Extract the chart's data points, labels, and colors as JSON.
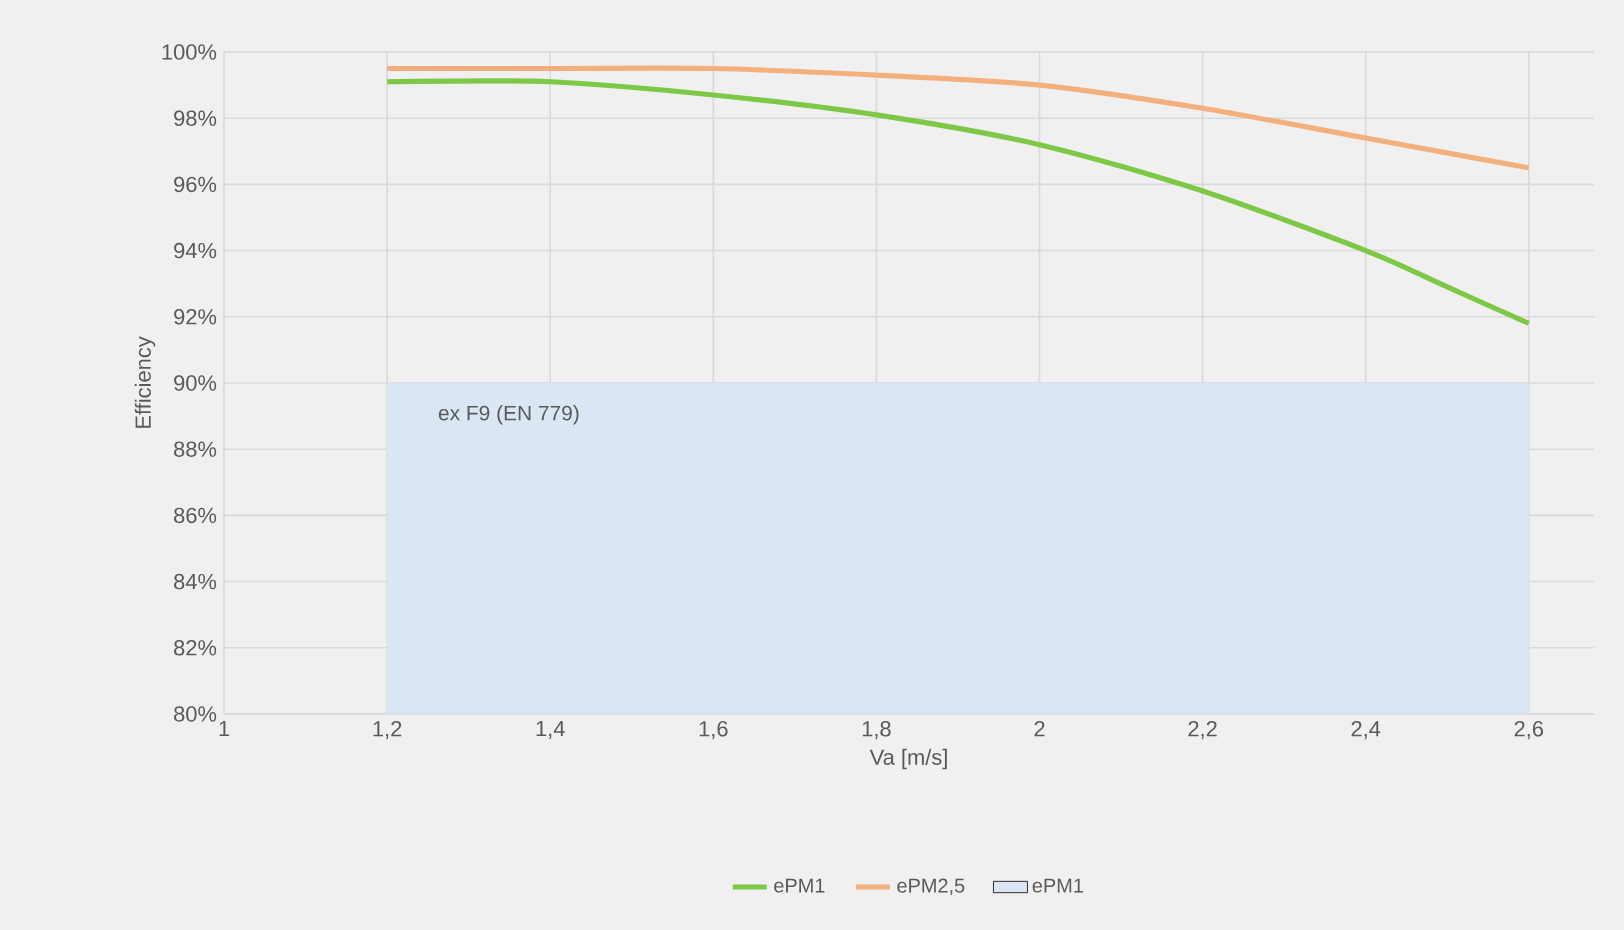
{
  "chart_data": {
    "type": "line",
    "xlabel": "Va [m/s]",
    "ylabel": "Efficiency",
    "series": [
      {
        "name": "ePM1",
        "color": "#7dc846",
        "x": [
          1.2,
          1.4,
          1.6,
          1.8,
          2.0,
          2.2,
          2.4,
          2.5,
          2.6
        ],
        "values": [
          99.1,
          99.1,
          98.7,
          98.1,
          97.2,
          95.8,
          94.0,
          92.9,
          91.8
        ]
      },
      {
        "name": "ePM2,5",
        "color": "#f4b07c",
        "x": [
          1.2,
          1.4,
          1.6,
          1.8,
          2.0,
          2.2,
          2.4,
          2.6
        ],
        "values": [
          99.5,
          99.5,
          99.5,
          99.3,
          99.0,
          98.3,
          97.4,
          96.5
        ]
      },
      {
        "name": "ePM1",
        "type": "area",
        "color": "#dae6f4",
        "x": [
          1.2,
          2.6
        ],
        "values": [
          90,
          90
        ]
      }
    ],
    "annotations": [
      "ex F9 (EN 779)"
    ],
    "xlim": [
      1,
      2.68
    ],
    "xticks": [
      1,
      {
        "value": 1.2,
        "label": "1,2"
      },
      {
        "value": 1.4,
        "label": "1,4"
      },
      {
        "value": 1.6,
        "label": "1,6"
      },
      {
        "value": 1.8,
        "label": "1,8"
      },
      2,
      {
        "value": 2.2,
        "label": "2,2"
      },
      {
        "value": 2.4,
        "label": "2,4"
      },
      {
        "value": 2.6,
        "label": "2,6"
      }
    ],
    "ylim": [
      80,
      100
    ],
    "yticks": [
      {
        "value": 80,
        "label": "80%"
      },
      {
        "value": 82,
        "label": "82%"
      },
      {
        "value": 84,
        "label": "84%"
      },
      {
        "value": 86,
        "label": "86%"
      },
      {
        "value": 88,
        "label": "88%"
      },
      {
        "value": 90,
        "label": "90%"
      },
      {
        "value": 92,
        "label": "92%"
      },
      {
        "value": 94,
        "label": "94%"
      },
      {
        "value": 96,
        "label": "96%"
      },
      {
        "value": 98,
        "label": "98%"
      },
      {
        "value": 100,
        "label": "100%"
      }
    ],
    "grid": true,
    "legend": "bottom"
  }
}
